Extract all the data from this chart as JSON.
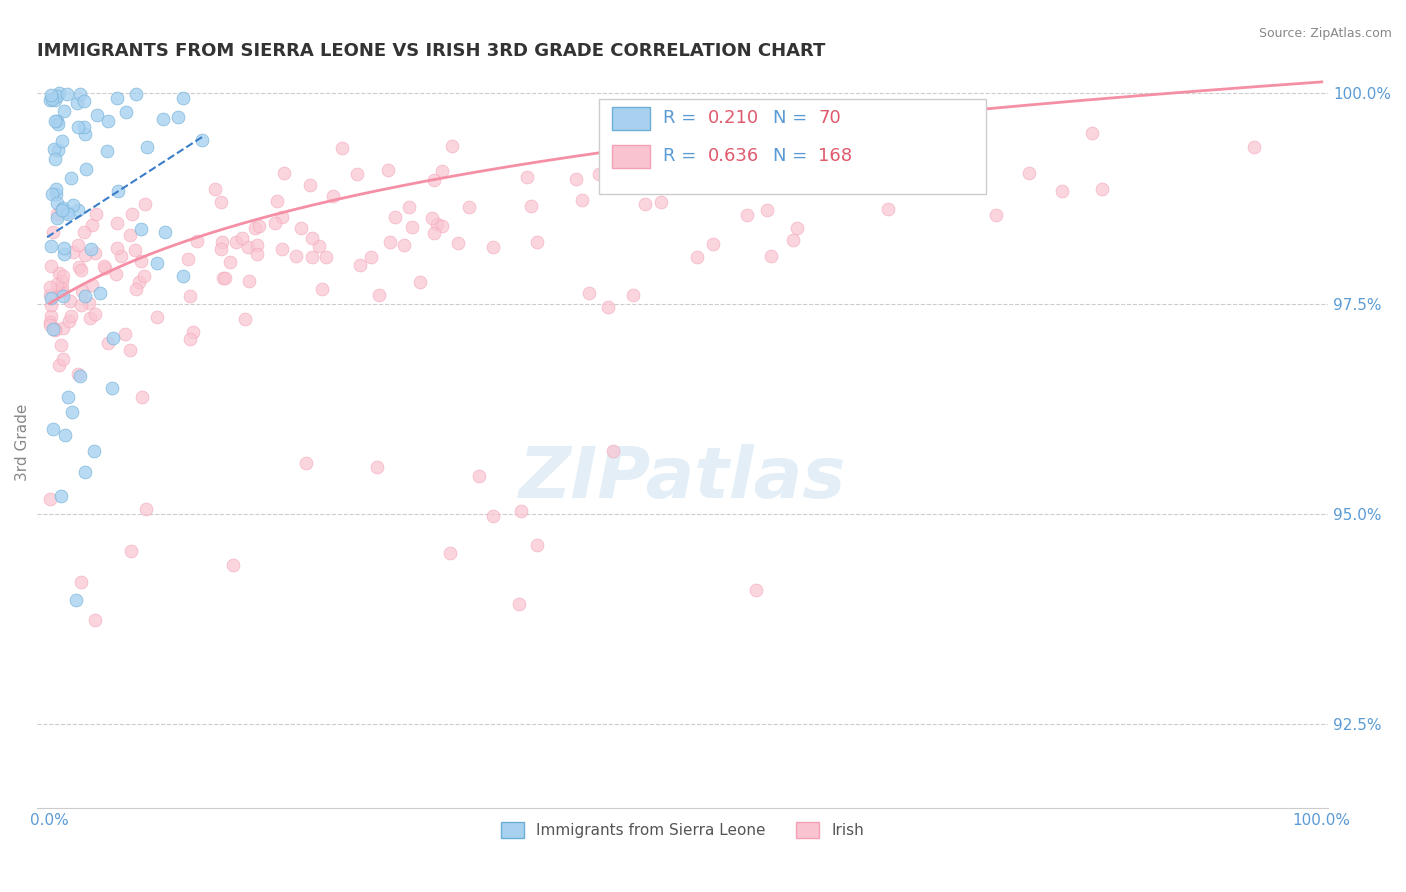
{
  "title": "IMMIGRANTS FROM SIERRA LEONE VS IRISH 3RD GRADE CORRELATION CHART",
  "source_text": "Source: ZipAtlas.com",
  "xlabel": "",
  "ylabel": "3rd Grade",
  "watermark": "ZIPatlas",
  "x_min": 0.0,
  "x_max": 1.0,
  "y_min": 0.915,
  "y_max": 1.002,
  "yticks": [
    0.925,
    0.95,
    0.975,
    1.0
  ],
  "ytick_labels": [
    "92.5%",
    "95.0%",
    "97.5%",
    "100.0%"
  ],
  "xticks": [
    0.0,
    1.0
  ],
  "xtick_labels": [
    "0.0%",
    "100.0%"
  ],
  "series": [
    {
      "name": "Immigrants from Sierra Leone",
      "R": 0.21,
      "N": 70,
      "color": "#6baed6",
      "face_color": "#a8d1f0",
      "edge_color": "#6baed6",
      "marker_size": 12,
      "trend_color": "#3a7dc9",
      "trend_style": "--"
    },
    {
      "name": "Irish",
      "R": 0.636,
      "N": 168,
      "color": "#f4a0b5",
      "face_color": "#f9c4d0",
      "edge_color": "#f4a0b5",
      "marker_size": 12,
      "trend_color": "#f48fa5",
      "trend_style": "-"
    }
  ],
  "background_color": "#ffffff",
  "grid_color": "#cccccc",
  "title_color": "#333333",
  "axis_label_color": "#5b9bd5",
  "tick_label_color": "#5b9bd5",
  "legend_box_colors": [
    "#a8d1f0",
    "#f9c4d0"
  ],
  "legend_R_color": "#5b9bd5",
  "legend_N_color": "#e05a6e"
}
